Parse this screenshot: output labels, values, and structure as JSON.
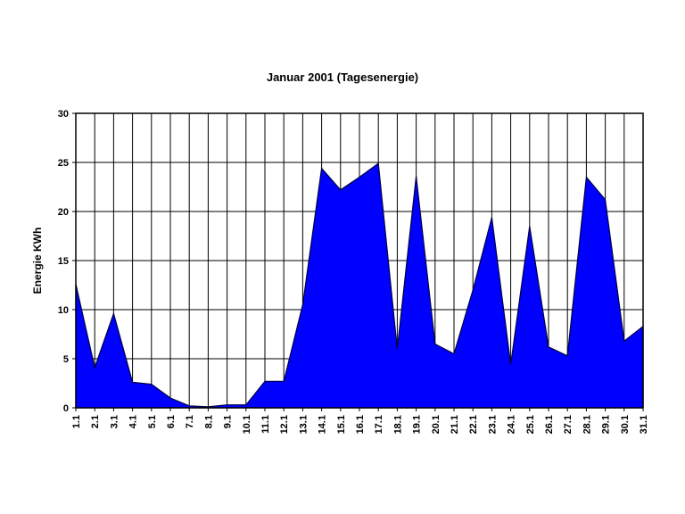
{
  "title": "Januar 2001 (Tagesenergie)",
  "chart_data": {
    "type": "area",
    "title": "Januar 2001 (Tagesenergie)",
    "xlabel": "",
    "ylabel": "Energie KWh",
    "ylim": [
      0,
      30
    ],
    "yticks": [
      0,
      5,
      10,
      15,
      20,
      25,
      30
    ],
    "grid": "both",
    "legend": "none",
    "categories": [
      "1.1",
      "2.1",
      "3.1",
      "4.1",
      "5.1",
      "6.1",
      "7.1",
      "8.1",
      "9.1",
      "10.1",
      "11.1",
      "12.1",
      "13.1",
      "14.1",
      "15.1",
      "16.1",
      "17.1",
      "18.1",
      "19.1",
      "20.1",
      "21.1",
      "22.1",
      "23.1",
      "24.1",
      "25.1",
      "26.1",
      "27.1",
      "28.1",
      "29.1",
      "30.1",
      "31.1"
    ],
    "values": [
      12.6,
      4.1,
      9.6,
      2.6,
      2.4,
      1.0,
      0.2,
      0.1,
      0.3,
      0.3,
      2.7,
      2.7,
      10.5,
      24.4,
      22.2,
      23.5,
      24.9,
      6.0,
      23.6,
      6.5,
      5.5,
      12.0,
      19.4,
      4.4,
      18.5,
      6.2,
      5.3,
      23.5,
      21.2,
      6.8,
      8.3
    ],
    "colors": {
      "series_fill": "#0000ff",
      "series_border": "#000040",
      "gridline": "#000000",
      "axis": "#000000",
      "text": "#000000",
      "background": "#ffffff"
    }
  }
}
